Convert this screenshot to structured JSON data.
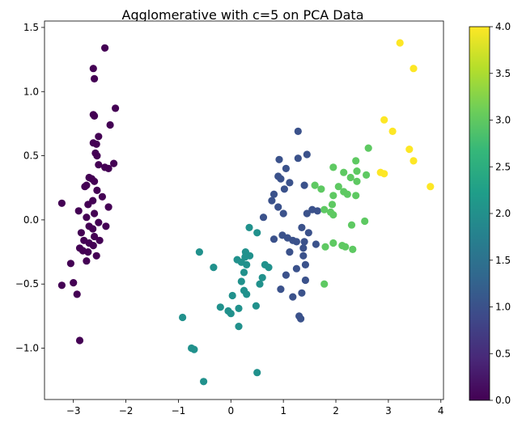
{
  "chart_data": {
    "type": "scatter",
    "title": "Agglomerative with c=5 on PCA Data",
    "xlabel": "",
    "ylabel": "",
    "xlim": [
      -3.55,
      4.05
    ],
    "ylim": [
      -1.4,
      1.55
    ],
    "xticks": [
      -3,
      -2,
      -1,
      0,
      1,
      2,
      3,
      4
    ],
    "xtick_labels": [
      "−3",
      "−2",
      "−1",
      "0",
      "1",
      "2",
      "3",
      "4"
    ],
    "yticks": [
      -1.0,
      -0.5,
      0.0,
      0.5,
      1.0,
      1.5
    ],
    "ytick_labels": [
      "−1.0",
      "−0.5",
      "0.0",
      "0.5",
      "1.0",
      "1.5"
    ],
    "grid": false,
    "colormap": "viridis",
    "colorbar": {
      "range": [
        0,
        4
      ],
      "ticks": [
        0,
        0.5,
        1,
        1.5,
        2,
        2.5,
        3,
        3.5,
        4
      ],
      "tick_labels": [
        "0.0",
        "0.5",
        "1.0",
        "1.5",
        "2.0",
        "2.5",
        "3.0",
        "3.5",
        "4.0"
      ],
      "stops": [
        "#440154",
        "#482878",
        "#3e4989",
        "#31688e",
        "#26828e",
        "#1f9e89",
        "#35b779",
        "#6ece58",
        "#b5de2b",
        "#fde725"
      ]
    },
    "cluster_colors": [
      "#440154",
      "#3b528b",
      "#21918c",
      "#5ec962",
      "#fde725"
    ],
    "points": [
      [
        -2.4,
        1.34,
        0
      ],
      [
        -2.62,
        1.18,
        0
      ],
      [
        -2.6,
        1.1,
        0
      ],
      [
        -2.2,
        0.87,
        0
      ],
      [
        -2.62,
        0.82,
        0
      ],
      [
        -2.6,
        0.81,
        0
      ],
      [
        -2.3,
        0.74,
        0
      ],
      [
        -2.52,
        0.65,
        0
      ],
      [
        -2.62,
        0.6,
        0
      ],
      [
        -2.56,
        0.59,
        0
      ],
      [
        -2.58,
        0.52,
        0
      ],
      [
        -2.55,
        0.5,
        0
      ],
      [
        -2.23,
        0.44,
        0
      ],
      [
        -2.52,
        0.43,
        0
      ],
      [
        -2.4,
        0.41,
        0
      ],
      [
        -2.33,
        0.4,
        0
      ],
      [
        -2.7,
        0.33,
        0
      ],
      [
        -2.65,
        0.32,
        0
      ],
      [
        -2.6,
        0.3,
        0
      ],
      [
        -2.75,
        0.27,
        0
      ],
      [
        -2.78,
        0.26,
        0
      ],
      [
        -2.55,
        0.23,
        0
      ],
      [
        -2.45,
        0.18,
        0
      ],
      [
        -2.63,
        0.15,
        0
      ],
      [
        -3.22,
        0.13,
        0
      ],
      [
        -2.72,
        0.12,
        0
      ],
      [
        -2.33,
        0.1,
        0
      ],
      [
        -2.9,
        0.07,
        0
      ],
      [
        -2.6,
        0.05,
        0
      ],
      [
        -2.75,
        0.02,
        0
      ],
      [
        -2.52,
        -0.02,
        0
      ],
      [
        -2.7,
        -0.05,
        0
      ],
      [
        -2.38,
        -0.05,
        0
      ],
      [
        -2.63,
        -0.07,
        0
      ],
      [
        -2.85,
        -0.1,
        0
      ],
      [
        -2.6,
        -0.13,
        0
      ],
      [
        -2.5,
        -0.16,
        0
      ],
      [
        -2.8,
        -0.16,
        0
      ],
      [
        -2.7,
        -0.18,
        0
      ],
      [
        -2.62,
        -0.2,
        0
      ],
      [
        -2.88,
        -0.22,
        0
      ],
      [
        -2.82,
        -0.24,
        0
      ],
      [
        -2.72,
        -0.25,
        0
      ],
      [
        -2.56,
        -0.28,
        0
      ],
      [
        -2.75,
        -0.32,
        0
      ],
      [
        -3.05,
        -0.34,
        0
      ],
      [
        -3.0,
        -0.49,
        0
      ],
      [
        -3.22,
        -0.51,
        0
      ],
      [
        -2.93,
        -0.58,
        0
      ],
      [
        -2.88,
        -0.94,
        0
      ],
      [
        1.28,
        0.69,
        1
      ],
      [
        1.45,
        0.51,
        1
      ],
      [
        1.28,
        0.48,
        1
      ],
      [
        0.92,
        0.47,
        1
      ],
      [
        1.05,
        0.4,
        1
      ],
      [
        0.9,
        0.34,
        1
      ],
      [
        0.95,
        0.32,
        1
      ],
      [
        1.12,
        0.29,
        1
      ],
      [
        1.4,
        0.27,
        1
      ],
      [
        1.02,
        0.24,
        1
      ],
      [
        0.82,
        0.2,
        1
      ],
      [
        0.78,
        0.15,
        1
      ],
      [
        0.9,
        0.1,
        1
      ],
      [
        1.55,
        0.08,
        1
      ],
      [
        1.65,
        0.07,
        1
      ],
      [
        1.0,
        0.05,
        1
      ],
      [
        1.45,
        0.05,
        1
      ],
      [
        0.62,
        0.02,
        1
      ],
      [
        1.35,
        -0.06,
        1
      ],
      [
        1.48,
        -0.1,
        1
      ],
      [
        0.98,
        -0.12,
        1
      ],
      [
        1.08,
        -0.14,
        1
      ],
      [
        0.82,
        -0.15,
        1
      ],
      [
        1.18,
        -0.16,
        1
      ],
      [
        1.25,
        -0.17,
        1
      ],
      [
        1.4,
        -0.17,
        1
      ],
      [
        1.62,
        -0.19,
        1
      ],
      [
        1.38,
        -0.22,
        1
      ],
      [
        1.12,
        -0.25,
        1
      ],
      [
        1.38,
        -0.28,
        1
      ],
      [
        1.42,
        -0.35,
        1
      ],
      [
        1.25,
        -0.38,
        1
      ],
      [
        1.05,
        -0.43,
        1
      ],
      [
        1.42,
        -0.47,
        1
      ],
      [
        0.95,
        -0.54,
        1
      ],
      [
        1.35,
        -0.57,
        1
      ],
      [
        1.18,
        -0.6,
        1
      ],
      [
        1.3,
        -0.75,
        1
      ],
      [
        1.33,
        -0.77,
        1
      ],
      [
        0.35,
        -0.06,
        2
      ],
      [
        0.5,
        -0.1,
        2
      ],
      [
        -0.6,
        -0.25,
        2
      ],
      [
        0.28,
        -0.25,
        2
      ],
      [
        0.36,
        -0.28,
        2
      ],
      [
        0.27,
        -0.29,
        2
      ],
      [
        0.12,
        -0.31,
        2
      ],
      [
        0.2,
        -0.33,
        2
      ],
      [
        0.3,
        -0.35,
        2
      ],
      [
        0.65,
        -0.35,
        2
      ],
      [
        0.72,
        -0.37,
        2
      ],
      [
        -0.33,
        -0.37,
        2
      ],
      [
        0.25,
        -0.41,
        2
      ],
      [
        0.6,
        -0.45,
        2
      ],
      [
        0.2,
        -0.48,
        2
      ],
      [
        0.55,
        -0.5,
        2
      ],
      [
        0.25,
        -0.55,
        2
      ],
      [
        0.3,
        -0.58,
        2
      ],
      [
        0.03,
        -0.59,
        2
      ],
      [
        0.48,
        -0.67,
        2
      ],
      [
        -0.2,
        -0.68,
        2
      ],
      [
        0.15,
        -0.69,
        2
      ],
      [
        -0.05,
        -0.71,
        2
      ],
      [
        0.0,
        -0.73,
        2
      ],
      [
        -0.92,
        -0.76,
        2
      ],
      [
        0.15,
        -0.83,
        2
      ],
      [
        -0.75,
        -1.0,
        2
      ],
      [
        -0.7,
        -1.01,
        2
      ],
      [
        0.5,
        -1.19,
        2
      ],
      [
        -0.52,
        -1.26,
        2
      ],
      [
        2.62,
        0.56,
        3
      ],
      [
        2.38,
        0.46,
        3
      ],
      [
        1.95,
        0.41,
        3
      ],
      [
        2.15,
        0.37,
        3
      ],
      [
        2.4,
        0.38,
        3
      ],
      [
        2.58,
        0.35,
        3
      ],
      [
        2.28,
        0.33,
        3
      ],
      [
        2.4,
        0.3,
        3
      ],
      [
        1.6,
        0.27,
        3
      ],
      [
        2.05,
        0.26,
        3
      ],
      [
        1.72,
        0.24,
        3
      ],
      [
        2.15,
        0.22,
        3
      ],
      [
        2.22,
        0.2,
        3
      ],
      [
        1.95,
        0.19,
        3
      ],
      [
        2.38,
        0.19,
        3
      ],
      [
        1.93,
        0.12,
        3
      ],
      [
        1.9,
        0.06,
        3
      ],
      [
        1.78,
        0.08,
        3
      ],
      [
        1.95,
        0.04,
        3
      ],
      [
        2.3,
        -0.04,
        3
      ],
      [
        2.55,
        -0.01,
        3
      ],
      [
        1.95,
        -0.18,
        3
      ],
      [
        2.12,
        -0.2,
        3
      ],
      [
        2.18,
        -0.21,
        3
      ],
      [
        1.8,
        -0.21,
        3
      ],
      [
        2.32,
        -0.23,
        3
      ],
      [
        1.78,
        -0.5,
        3
      ],
      [
        3.22,
        1.38,
        4
      ],
      [
        3.48,
        1.18,
        4
      ],
      [
        2.92,
        0.78,
        4
      ],
      [
        3.08,
        0.69,
        4
      ],
      [
        3.4,
        0.55,
        4
      ],
      [
        3.48,
        0.46,
        4
      ],
      [
        2.85,
        0.37,
        4
      ],
      [
        2.92,
        0.36,
        4
      ],
      [
        3.8,
        0.26,
        4
      ]
    ]
  }
}
